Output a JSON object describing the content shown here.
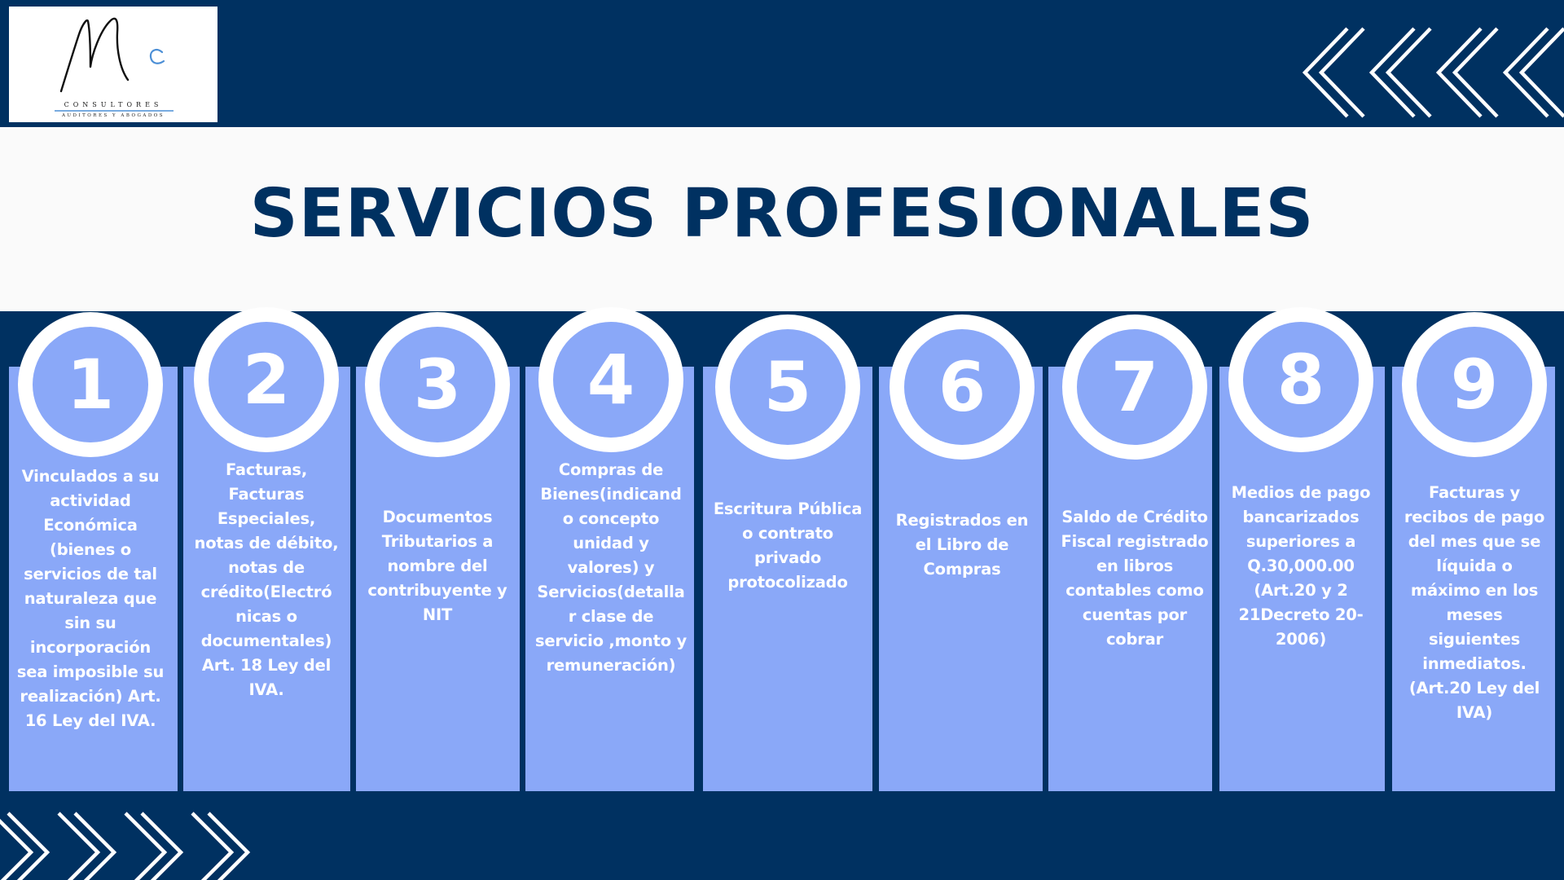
{
  "logo": {
    "line1": "CONSULTORES",
    "line2": "AUDITORES Y ABOGADOS",
    "icon": "mc-signature-logo"
  },
  "title": "SERVICIOS PROFESIONALES",
  "colors": {
    "navy": "#003161",
    "card": "#8aa8f8",
    "title_band": "#fafafa",
    "white": "#ffffff"
  },
  "decorations": {
    "top": "chevron-left-icon",
    "bottom": "chevron-right-icon"
  },
  "steps": [
    {
      "number": "1",
      "text": "Vinculados a su\nactividad\nEconómica\n(bienes o\nservicios de tal\nnaturaleza que\nsin su\nincorporación\nsea imposible su\nrealización) Art.\n16 Ley del IVA."
    },
    {
      "number": "2",
      "text": "Facturas,\nFacturas\nEspeciales,\nnotas de débito,\nnotas de\ncrédito(Electró\nnicas o\ndocumentales)\nArt. 18 Ley del\nIVA."
    },
    {
      "number": "3",
      "text": "Documentos\nTributarios a\nnombre del\ncontribuyente y\nNIT"
    },
    {
      "number": "4",
      "text": "Compras de\nBienes(indicand\no concepto\nunidad y\nvalores) y\nServicios(detalla\nr clase de\nservicio ,monto y\nremuneración)"
    },
    {
      "number": "5",
      "text": "Escritura Pública\no contrato\nprivado\nprotocolizado"
    },
    {
      "number": "6",
      "text": "Registrados en\nel Libro de\nCompras"
    },
    {
      "number": "7",
      "text": "Saldo de Crédito\nFiscal registrado\nen libros\ncontables como\ncuentas por\ncobrar"
    },
    {
      "number": "8",
      "text": "Medios de pago\nbancarizados\nsuperiores a\nQ.30,000.00\n(Art.20 y 2\n21Decreto 20-\n2006)"
    },
    {
      "number": "9",
      "text": "Facturas y\nrecibos de pago\ndel mes que se\nlíquida o\nmáximo en los\nmeses\nsiguientes\ninmediatos.\n(Art.20 Ley del\nIVA)"
    }
  ]
}
